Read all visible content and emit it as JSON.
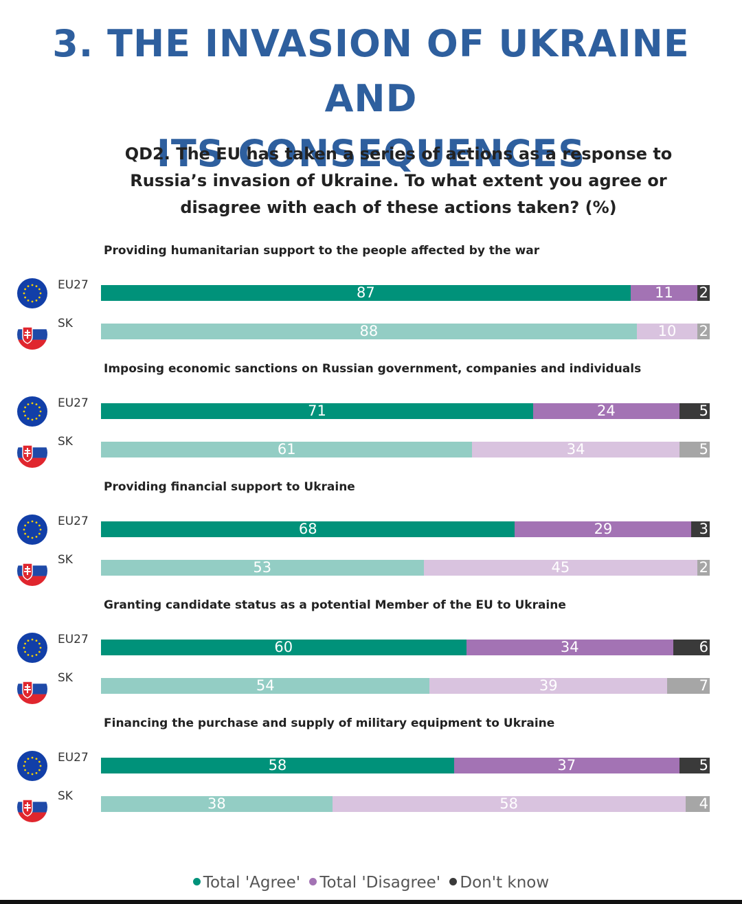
{
  "header": {
    "title_lines": [
      "3. THE INVASION OF UKRAINE AND",
      "ITS CONSEQUENCES"
    ],
    "question_lines": [
      "QD2. The EU has taken a series of actions as a response to",
      "Russia’s invasion of Ukraine. To what extent you agree or",
      "disagree with each of these actions taken? (%)"
    ]
  },
  "colors": {
    "title": "#2e5f9e",
    "eu_agree": "#00927a",
    "eu_disagree": "#a373b4",
    "eu_dontknow": "#3a3a3a",
    "sk_agree": "#93cdc4",
    "sk_disagree": "#d9c3df",
    "sk_dontknow": "#a6a6a6",
    "eu_flag": "#123fa8",
    "eu_stars": "#f7d100"
  },
  "chart_data": {
    "type": "bar",
    "orientation": "horizontal",
    "stacked": true,
    "unit": "%",
    "legend_position": "bottom",
    "series_names": [
      "Total 'Agree'",
      "Total 'Disagree'",
      "Don't know"
    ],
    "items": [
      {
        "label": "Providing humanitarian support to the people affected by the war",
        "rows": [
          {
            "name": "EU27",
            "flag": "eu-flag-icon",
            "agree": 87,
            "disagree": 11,
            "dontknow": 2
          },
          {
            "name": "SK",
            "flag": "slovakia-flag-icon",
            "agree": 88,
            "disagree": 10,
            "dontknow": 2
          }
        ]
      },
      {
        "label": "Imposing economic sanctions on Russian government, companies and individuals",
        "rows": [
          {
            "name": "EU27",
            "flag": "eu-flag-icon",
            "agree": 71,
            "disagree": 24,
            "dontknow": 5
          },
          {
            "name": "SK",
            "flag": "slovakia-flag-icon",
            "agree": 61,
            "disagree": 34,
            "dontknow": 5
          }
        ]
      },
      {
        "label": "Providing financial support to Ukraine",
        "rows": [
          {
            "name": "EU27",
            "flag": "eu-flag-icon",
            "agree": 68,
            "disagree": 29,
            "dontknow": 3
          },
          {
            "name": "SK",
            "flag": "slovakia-flag-icon",
            "agree": 53,
            "disagree": 45,
            "dontknow": 2
          }
        ]
      },
      {
        "label": "Granting candidate status as a potential Member of the EU to Ukraine",
        "rows": [
          {
            "name": "EU27",
            "flag": "eu-flag-icon",
            "agree": 60,
            "disagree": 34,
            "dontknow": 6
          },
          {
            "name": "SK",
            "flag": "slovakia-flag-icon",
            "agree": 54,
            "disagree": 39,
            "dontknow": 7
          }
        ]
      },
      {
        "label": "Financing the purchase and supply of military equipment to Ukraine",
        "rows": [
          {
            "name": "EU27",
            "flag": "eu-flag-icon",
            "agree": 58,
            "disagree": 37,
            "dontknow": 5
          },
          {
            "name": "SK",
            "flag": "slovakia-flag-icon",
            "agree": 38,
            "disagree": 58,
            "dontknow": 4
          }
        ]
      }
    ]
  },
  "legend": {
    "agree": "Total 'Agree'",
    "disagree": "Total 'Disagree'",
    "dontknow": "Don't know"
  }
}
